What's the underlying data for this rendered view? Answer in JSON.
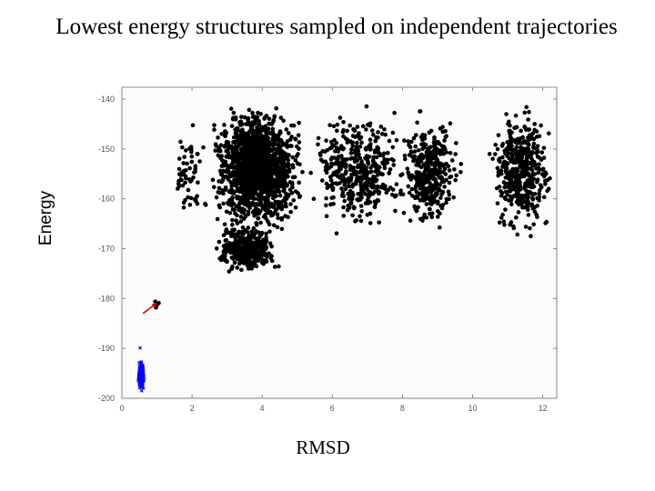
{
  "chart_data": {
    "type": "scatter",
    "title": "Lowest energy structures sampled on independent trajectories",
    "xlabel": "RMSD",
    "ylabel": "Energy",
    "xlim": [
      0,
      12.4
    ],
    "ylim": [
      -200,
      -138
    ],
    "xticks": [
      "0",
      "2",
      "4",
      "6",
      "8",
      "10",
      "12"
    ],
    "yticks": [
      "-140",
      "-150",
      "-160",
      "-170",
      "-180",
      "-190",
      "-200"
    ],
    "grid": false,
    "series": [
      {
        "marker": "circle",
        "color": "#000000",
        "clusters": [
          {
            "x_range": [
              2.4,
              5.3
            ],
            "y_range": [
              -168,
              -140
            ],
            "count": 1500
          },
          {
            "x_range": [
              2.5,
              4.6
            ],
            "y_range": [
              -176,
              -164
            ],
            "count": 350
          },
          {
            "x_range": [
              5.2,
              8.2
            ],
            "y_range": [
              -168,
              -140
            ],
            "count": 450
          },
          {
            "x_range": [
              7.8,
              9.8
            ],
            "y_range": [
              -168,
              -142
            ],
            "count": 380
          },
          {
            "x_range": [
              10.4,
              12.4
            ],
            "y_range": [
              -169,
              -140
            ],
            "count": 450
          },
          {
            "x_range": [
              1.3,
              2.5
            ],
            "y_range": [
              -166,
              -142
            ],
            "count": 60
          }
        ],
        "points": [
          [
            0.95,
            -180.6
          ],
          [
            1.0,
            -181.3
          ],
          [
            1.05,
            -180.9
          ],
          [
            0.97,
            -181.8
          ]
        ]
      },
      {
        "marker": "x",
        "color": "#0000ff",
        "clusters": [
          {
            "x_range": [
              0.45,
              0.65
            ],
            "y_range": [
              -199,
              -192
            ],
            "count": 220
          }
        ],
        "points": [
          [
            0.52,
            -189.9
          ]
        ]
      }
    ],
    "annotations": [
      {
        "type": "arrow",
        "color": "#cc0000",
        "from": [
          0.6,
          -183.0
        ],
        "to": [
          1.0,
          -180.9
        ]
      }
    ]
  }
}
